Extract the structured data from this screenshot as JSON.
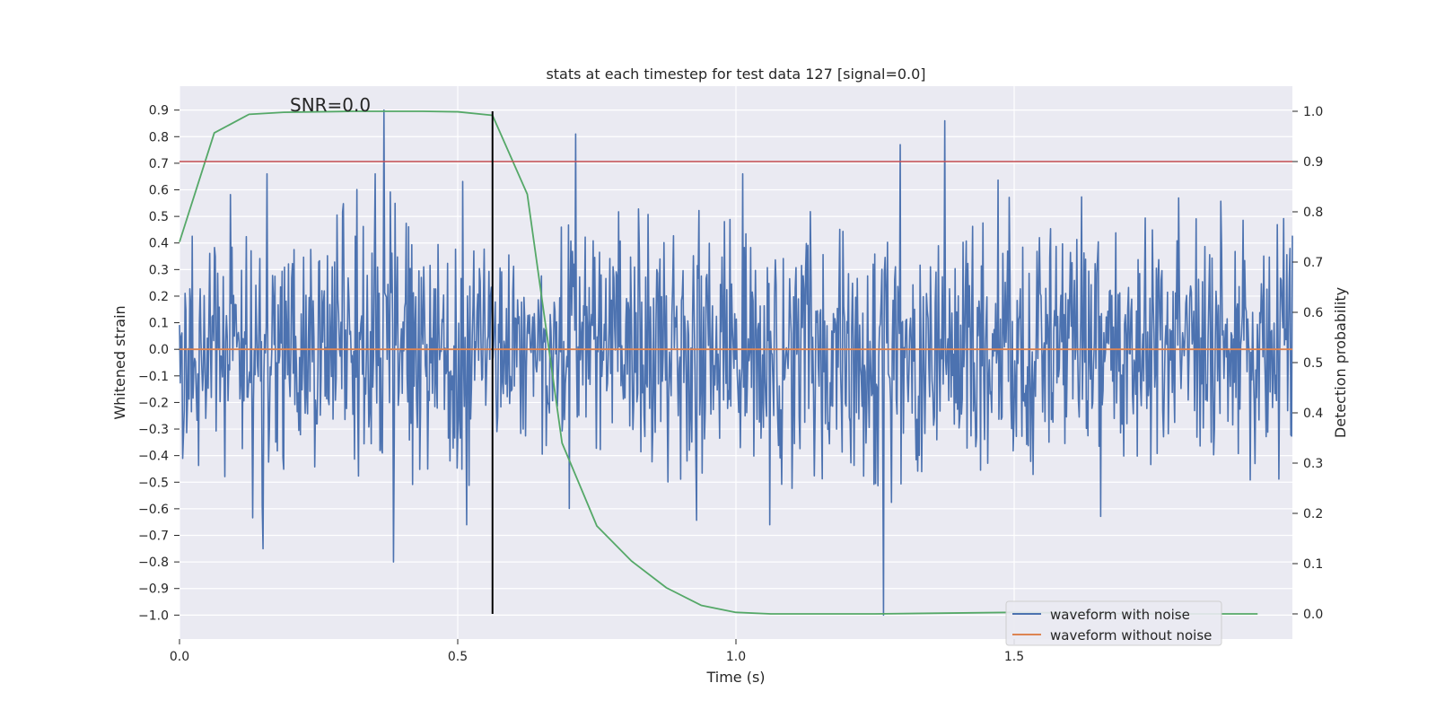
{
  "chart_data": {
    "type": "line",
    "title": "stats at each timestep for test data 127 [signal=0.0]",
    "xlabel": "Time (s)",
    "ylabel": "Whitened strain",
    "y2label": "Detection probability",
    "xlim": [
      0.0,
      2.0
    ],
    "ylim": [
      -1.09,
      0.99
    ],
    "y2lim": [
      -0.05,
      1.05
    ],
    "xticks": [
      0.0,
      0.5,
      1.0,
      1.5
    ],
    "xtick_labels": [
      "0.0",
      "0.5",
      "1.0",
      "1.5"
    ],
    "yticks": [
      0.9,
      0.8,
      0.7,
      0.6,
      0.5,
      0.4,
      0.3,
      0.2,
      0.1,
      0.0,
      -0.1,
      -0.2,
      -0.3,
      -0.4,
      -0.5,
      -0.6,
      -0.7,
      -0.8,
      -0.9,
      -1.0
    ],
    "ytick_labels": [
      "0.9",
      "0.8",
      "0.7",
      "0.6",
      "0.5",
      "0.4",
      "0.3",
      "0.2",
      "0.1",
      "0.0",
      "−0.1",
      "−0.2",
      "−0.3",
      "−0.4",
      "−0.5",
      "−0.6",
      "−0.7",
      "−0.8",
      "−0.9",
      "−1.0"
    ],
    "y2ticks": [
      1.0,
      0.9,
      0.8,
      0.7,
      0.6,
      0.5,
      0.4,
      0.3,
      0.2,
      0.1,
      0.0
    ],
    "y2tick_labels": [
      "1.0",
      "0.9",
      "0.8",
      "0.7",
      "0.6",
      "0.5",
      "0.4",
      "0.3",
      "0.2",
      "0.1",
      "0.0"
    ],
    "annotation": "SNR=0.0",
    "threshold_line": {
      "axis": "y2",
      "value": 0.9,
      "color": "#c44e52"
    },
    "marker_line": {
      "x": 0.5625,
      "y2_from": 0.0,
      "y2_to": 1.0,
      "color": "#000000"
    },
    "series": [
      {
        "name": "waveform with noise",
        "axis": "y",
        "color": "#4c72b0",
        "kind": "noise",
        "t_range": [
          0.0,
          2.0
        ],
        "n_points": 1400,
        "std": 0.23,
        "seed": 127,
        "spikes": [
          [
            0.367,
            0.9
          ],
          [
            0.712,
            0.81
          ],
          [
            1.295,
            0.77
          ],
          [
            1.265,
            -1.0
          ],
          [
            0.385,
            -0.8
          ],
          [
            0.15,
            -0.75
          ],
          [
            1.375,
            0.86
          ]
        ]
      },
      {
        "name": "waveform without noise",
        "axis": "y",
        "color": "#dd8452",
        "kind": "line",
        "x": [
          0.0,
          2.0
        ],
        "y": [
          0.0,
          0.0
        ]
      },
      {
        "name": "detection probability",
        "axis": "y2",
        "color": "#55a868",
        "legend": false,
        "kind": "line",
        "x": [
          0.0,
          0.0625,
          0.125,
          0.1875,
          0.25,
          0.3125,
          0.375,
          0.4375,
          0.5,
          0.5625,
          0.625,
          0.6875,
          0.75,
          0.8125,
          0.875,
          0.9375,
          1.0,
          1.0625,
          1.25,
          1.5,
          1.75,
          1.9375
        ],
        "y": [
          0.74,
          0.957,
          0.994,
          0.998,
          0.999,
          1.0,
          1.0,
          1.0,
          0.999,
          0.992,
          0.835,
          0.34,
          0.175,
          0.105,
          0.052,
          0.017,
          0.003,
          0.0,
          0.0,
          0.003,
          0.0,
          0.0
        ]
      }
    ],
    "legend": {
      "position": "lower-right",
      "entries": [
        "waveform with noise",
        "waveform without noise"
      ]
    }
  }
}
